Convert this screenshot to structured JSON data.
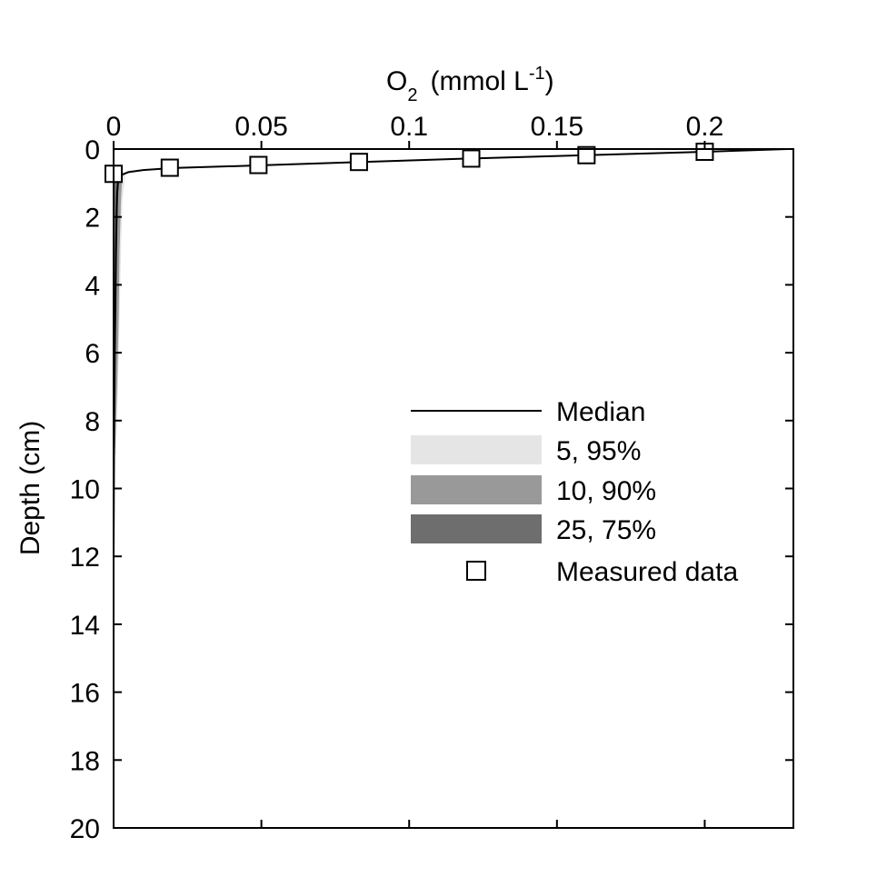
{
  "chart_data": {
    "type": "line",
    "x_axis": {
      "title_main": "O",
      "title_sub": "2",
      "title_unit_prefix": "(mmol L",
      "title_unit_sup": "-1",
      "title_unit_suffix": ")",
      "position": "top",
      "range": [
        0,
        0.23
      ],
      "ticks": [
        0,
        0.05,
        0.1,
        0.15,
        0.2
      ],
      "tick_labels": [
        "0",
        "0.05",
        "0.1",
        "0.15",
        "0.2"
      ]
    },
    "y_axis": {
      "title": "Depth (cm)",
      "range": [
        0,
        20
      ],
      "inverted": true,
      "ticks": [
        0,
        2,
        4,
        6,
        8,
        10,
        12,
        14,
        16,
        18,
        20
      ],
      "tick_labels": [
        "0",
        "2",
        "4",
        "6",
        "8",
        "10",
        "12",
        "14",
        "16",
        "18",
        "20"
      ]
    },
    "grid": false,
    "legend": {
      "placement": "center-right",
      "entries": [
        {
          "label": "Median",
          "kind": "line",
          "color": "#000000"
        },
        {
          "label": "5, 95%",
          "kind": "band",
          "color": "#e5e5e5"
        },
        {
          "label": "10, 90%",
          "kind": "band",
          "color": "#999999"
        },
        {
          "label": "25, 75%",
          "kind": "band",
          "color": "#6e6e6e"
        },
        {
          "label": "Measured data",
          "kind": "marker",
          "color": "#000000"
        }
      ]
    },
    "series": [
      {
        "name": "Median",
        "kind": "line",
        "x": [
          0.228,
          0.2,
          0.16,
          0.12,
          0.084,
          0.05,
          0.02,
          0.01,
          0.005,
          0.003,
          0.002,
          0.0015,
          0.0012,
          0.001,
          0.0008,
          0.0006,
          0.0004,
          0.0002,
          0.0001,
          0
        ],
        "y": [
          0.0,
          0.08,
          0.18,
          0.28,
          0.38,
          0.48,
          0.56,
          0.62,
          0.68,
          0.75,
          0.85,
          1.0,
          1.3,
          2.0,
          3.0,
          4.5,
          6.0,
          8.0,
          10.0,
          12.0
        ]
      },
      {
        "name": "5, 95%",
        "kind": "band",
        "y": [
          0.7,
          1.5,
          3.0,
          5.0,
          7.0,
          9.0
        ],
        "x_low": [
          0.0,
          0.0,
          0.0,
          0.0,
          0.0,
          0.0
        ],
        "x_high": [
          0.004,
          0.003,
          0.0025,
          0.002,
          0.0015,
          0.0008
        ]
      },
      {
        "name": "10, 90%",
        "kind": "band",
        "y": [
          0.7,
          1.5,
          3.0,
          5.0,
          7.0,
          8.8
        ],
        "x_low": [
          0.0,
          0.0,
          0.0,
          0.0,
          0.0,
          0.0
        ],
        "x_high": [
          0.003,
          0.0025,
          0.002,
          0.0017,
          0.0012,
          0.0005
        ]
      },
      {
        "name": "25, 75%",
        "kind": "band",
        "y": [
          0.7,
          1.5,
          3.0,
          5.0,
          6.5
        ],
        "x_low": [
          0.0,
          0.0,
          0.0,
          0.0,
          0.0
        ],
        "x_high": [
          0.0018,
          0.0015,
          0.0012,
          0.0009,
          0.0004
        ]
      },
      {
        "name": "Measured data",
        "kind": "scatter",
        "x": [
          0.0,
          0.019,
          0.049,
          0.083,
          0.121,
          0.16,
          0.2
        ],
        "y": [
          0.73,
          0.55,
          0.47,
          0.38,
          0.28,
          0.18,
          0.08
        ]
      }
    ]
  }
}
